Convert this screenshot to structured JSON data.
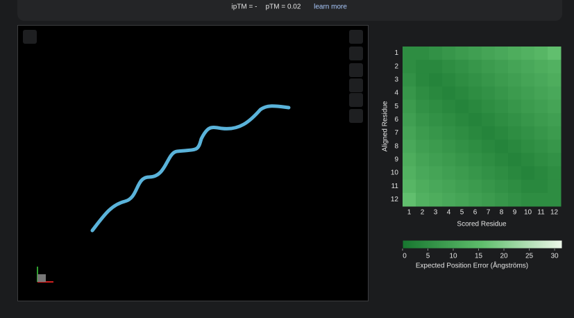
{
  "header": {
    "iptm": "ipTM = -",
    "ptm": "pTM = 0.02",
    "link": "learn more"
  },
  "chart_data": {
    "type": "heatmap",
    "x_label": "Scored Residue",
    "y_label": "Aligned Residue",
    "categories": [
      "1",
      "2",
      "3",
      "4",
      "5",
      "6",
      "7",
      "8",
      "9",
      "10",
      "11",
      "12"
    ],
    "rows": [
      "1",
      "2",
      "3",
      "4",
      "5",
      "6",
      "7",
      "8",
      "9",
      "10",
      "11",
      "12"
    ],
    "values": [
      [
        5,
        5,
        6,
        7,
        8,
        9,
        10,
        11,
        12,
        13,
        14,
        16
      ],
      [
        5,
        4,
        4,
        5,
        6,
        7,
        8,
        9,
        10,
        11,
        12,
        13
      ],
      [
        6,
        4,
        3,
        4,
        5,
        6,
        7,
        8,
        9,
        10,
        11,
        12
      ],
      [
        7,
        5,
        4,
        3,
        4,
        5,
        6,
        7,
        8,
        9,
        10,
        11
      ],
      [
        8,
        6,
        5,
        4,
        3,
        4,
        5,
        6,
        7,
        8,
        9,
        10
      ],
      [
        9,
        7,
        6,
        5,
        4,
        3,
        4,
        5,
        6,
        7,
        8,
        9
      ],
      [
        10,
        8,
        7,
        6,
        5,
        4,
        3,
        4,
        5,
        6,
        7,
        8
      ],
      [
        11,
        9,
        8,
        7,
        6,
        5,
        4,
        3,
        4,
        5,
        6,
        7
      ],
      [
        12,
        10,
        9,
        8,
        7,
        6,
        5,
        4,
        3,
        4,
        5,
        6
      ],
      [
        13,
        11,
        10,
        9,
        8,
        7,
        6,
        5,
        4,
        3,
        4,
        5
      ],
      [
        14,
        12,
        11,
        10,
        9,
        8,
        7,
        6,
        5,
        4,
        4,
        5
      ],
      [
        16,
        13,
        12,
        11,
        10,
        9,
        8,
        7,
        6,
        5,
        5,
        5
      ]
    ],
    "colorscale": [
      "#17762f",
      "#5fbe6c",
      "#eef7ea"
    ],
    "zlim": [
      0,
      31.5
    ],
    "zticks": [
      0,
      5,
      10,
      15,
      20,
      25,
      30
    ],
    "colorbar_label": "Expected Position Error (Ångströms)"
  }
}
